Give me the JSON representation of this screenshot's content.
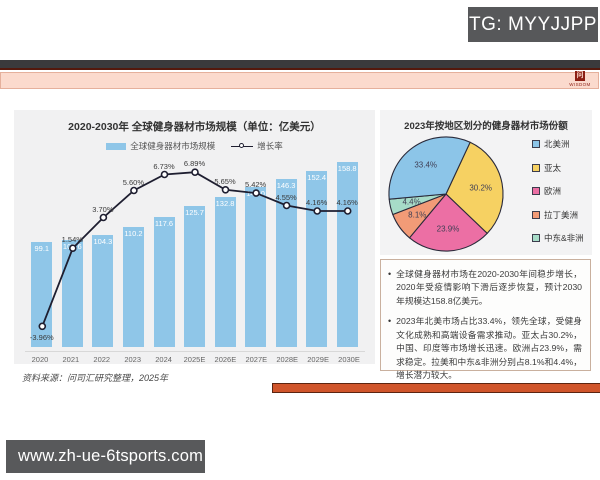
{
  "tg_badge": "TG: MYYJJPP",
  "logo": {
    "mark": "问",
    "text": "WISDOM"
  },
  "url_badge": "www.zh-ue-6tsports.com",
  "source_note": "资料来源：问司汇研究整理，2025年",
  "colors": {
    "bar": "#8fc6e8",
    "line": "#1e1e30",
    "accent_orange": "#d0552b",
    "badge_gray": "#58595b",
    "pink_band": "#fbdacd"
  },
  "chart_data": [
    {
      "type": "bar",
      "title": "2020-2030年 全球健身器材市场规模（单位：亿美元）",
      "legend": {
        "bar": "全球健身器材市场规模",
        "line": "增长率"
      },
      "categories": [
        "2020",
        "2021",
        "2022",
        "2023",
        "2024",
        "2025E",
        "2026E",
        "2027E",
        "2028E",
        "2029E",
        "2030E"
      ],
      "series": [
        {
          "name": "全球健身器材市场规模",
          "type": "bar",
          "values": [
            99.1,
            100.6,
            104.3,
            110.2,
            117.6,
            125.7,
            132.8,
            140.0,
            146.3,
            152.4,
            158.8
          ],
          "labels": [
            "99.1",
            "100.6",
            "104.3",
            "110.2",
            "117.6",
            "125.7",
            "132.8",
            "140.0",
            "146.3",
            "152.4",
            "158.8"
          ]
        },
        {
          "name": "增长率",
          "type": "line",
          "values": [
            -3.96,
            1.54,
            3.7,
            5.6,
            6.73,
            6.89,
            5.65,
            5.42,
            4.55,
            4.16,
            4.16
          ],
          "labels": [
            "-3.96%",
            "1.54%",
            "3.70%",
            "5.60%",
            "6.73%",
            "6.89%",
            "5.65%",
            "5.42%",
            "4.55%",
            "4.16%",
            "4.16%"
          ]
        }
      ],
      "ylabel": "",
      "xlabel": "",
      "grid": false,
      "legend_position": "top"
    },
    {
      "type": "pie",
      "title": "2023年按地区划分的健身器材市场份额",
      "start_angle": 25,
      "draw_order": [
        1,
        2,
        3,
        4,
        0
      ],
      "slices": [
        {
          "label": "北美洲",
          "value": 33.4,
          "display": "33.4%",
          "color": "#8cc5e8"
        },
        {
          "label": "亚太",
          "value": 30.2,
          "display": "30.2%",
          "color": "#f6d162"
        },
        {
          "label": "欧洲",
          "value": 23.9,
          "display": "23.9%",
          "color": "#ec6fa4"
        },
        {
          "label": "拉丁美洲",
          "value": 8.1,
          "display": "8.1%",
          "color": "#f29b77"
        },
        {
          "label": "中东&非洲",
          "value": 4.4,
          "display": "4.4%",
          "color": "#a7dcc8"
        }
      ],
      "legend_position": "right"
    }
  ],
  "notes": [
    "全球健身器材市场在2020-2030年间稳步增长，2020年受疫情影响下滑后逐步恢复，预计2030年规模达158.8亿美元。",
    "2023年北美市场占比33.4%，领先全球，受健身文化成熟和高端设备需求推动。亚太占30.2%，中国、印度等市场增长迅速。欧洲占23.9%，需求稳定。拉美和中东&非洲分别占8.1%和4.4%，增长潜力较大。"
  ],
  "notes_bullet": "•"
}
